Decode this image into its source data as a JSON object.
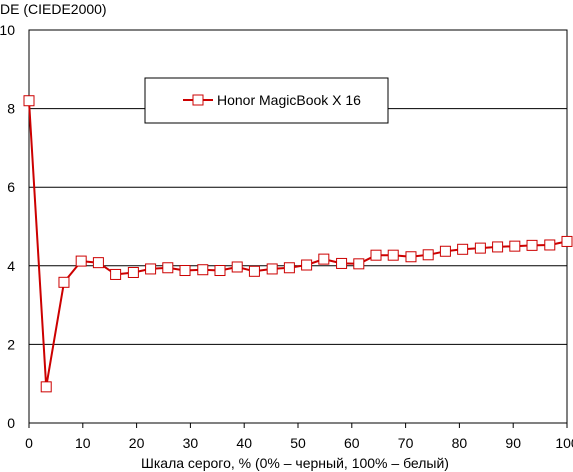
{
  "chart_data": {
    "type": "line",
    "title": "",
    "ylabel": "DE (CIEDE2000)",
    "xlabel": "Шкала серого, % (0% – черный, 100% – белый)",
    "xlim": [
      0,
      100
    ],
    "ylim": [
      0,
      10
    ],
    "xticks": [
      0,
      10,
      20,
      30,
      40,
      50,
      60,
      70,
      80,
      90,
      100
    ],
    "yticks": [
      0,
      2,
      4,
      6,
      8,
      10
    ],
    "grid": "horizontal",
    "legend_position": "top-center",
    "series": [
      {
        "name": "Honor MagicBook X 16",
        "color": "#cc0000",
        "marker": "square-open",
        "x": [
          0,
          3.2,
          6.5,
          9.7,
          12.9,
          16.1,
          19.4,
          22.6,
          25.8,
          29.0,
          32.3,
          35.5,
          38.7,
          41.9,
          45.2,
          48.4,
          51.6,
          54.8,
          58.1,
          61.3,
          64.5,
          67.7,
          71.0,
          74.2,
          77.4,
          80.6,
          83.9,
          87.1,
          90.3,
          93.5,
          96.8,
          100
        ],
        "values": [
          8.2,
          0.92,
          3.58,
          4.12,
          4.08,
          3.78,
          3.83,
          3.92,
          3.95,
          3.88,
          3.9,
          3.88,
          3.97,
          3.86,
          3.92,
          3.95,
          4.02,
          4.17,
          4.06,
          4.05,
          4.27,
          4.27,
          4.23,
          4.28,
          4.37,
          4.42,
          4.45,
          4.48,
          4.5,
          4.52,
          4.53,
          4.62
        ]
      }
    ]
  }
}
